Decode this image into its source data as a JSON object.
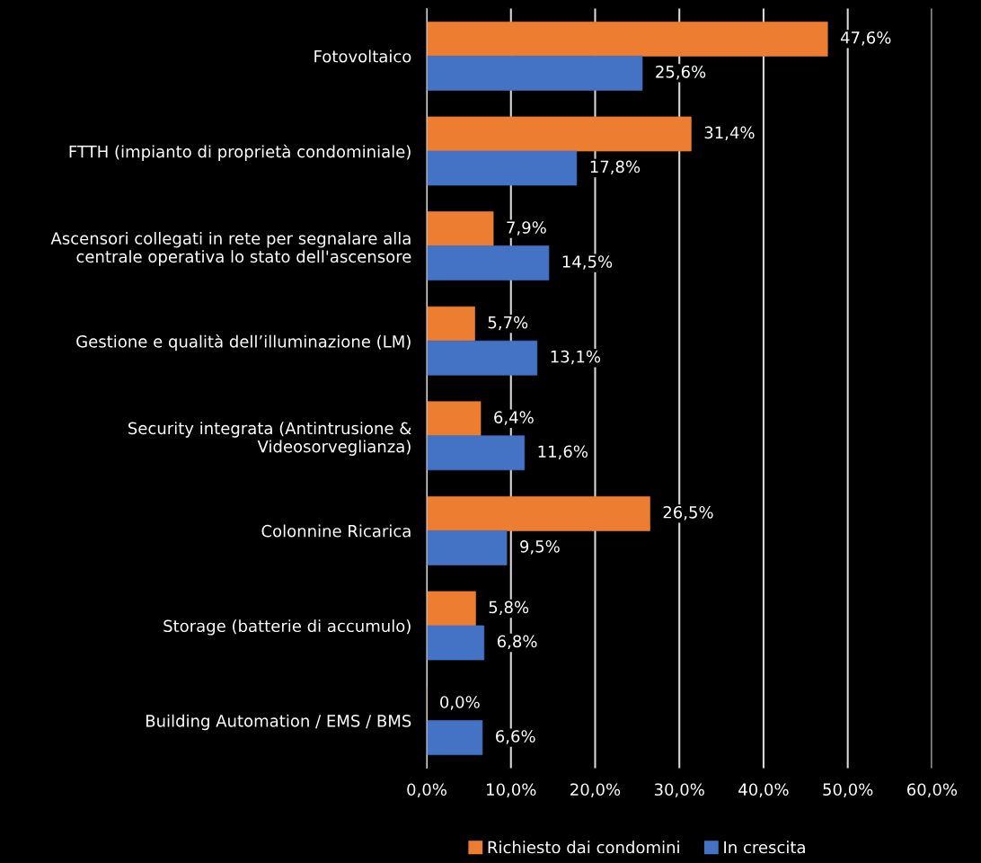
{
  "chart_data": {
    "type": "bar",
    "orientation": "horizontal",
    "categories": [
      "Fotovoltaico",
      "FTTH (impianto di proprietà condominiale)",
      "Ascensori collegati in rete per segnalare alla\ncentrale operativa lo stato dell'ascensore",
      "Gestione e qualità dell’illuminazione (LM)",
      "Security integrata (Antintrusione &\nVideosorveglianza)",
      "Colonnine Ricarica",
      "Storage (batterie di accumulo)",
      "Building Automation / EMS / BMS"
    ],
    "series": [
      {
        "name": "Richiesto dai condomini",
        "color": "#ed7d31",
        "values": [
          47.6,
          31.4,
          7.9,
          5.7,
          6.4,
          26.5,
          5.8,
          0.0
        ],
        "value_labels": [
          "47,6%",
          "31,4%",
          "7,9%",
          "5,7%",
          "6,4%",
          "26,5%",
          "5,8%",
          "0,0%"
        ]
      },
      {
        "name": "In crescita",
        "color": "#4472c4",
        "values": [
          25.6,
          17.8,
          14.5,
          13.1,
          11.6,
          9.5,
          6.8,
          6.6
        ],
        "value_labels": [
          "25,6%",
          "17,8%",
          "14,5%",
          "13,1%",
          "11,6%",
          "9,5%",
          "6,8%",
          "6,6%"
        ]
      }
    ],
    "xlim": [
      0,
      60
    ],
    "xticks": [
      {
        "value": 0,
        "label": "0,0%"
      },
      {
        "value": 10,
        "label": "10,0%"
      },
      {
        "value": 20,
        "label": "20,0%"
      },
      {
        "value": 30,
        "label": "30,0%"
      },
      {
        "value": 40,
        "label": "40,0%"
      },
      {
        "value": 50,
        "label": "50,0%"
      },
      {
        "value": 60,
        "label": "60,0%"
      }
    ],
    "grid": "x",
    "legend": "bottom"
  }
}
